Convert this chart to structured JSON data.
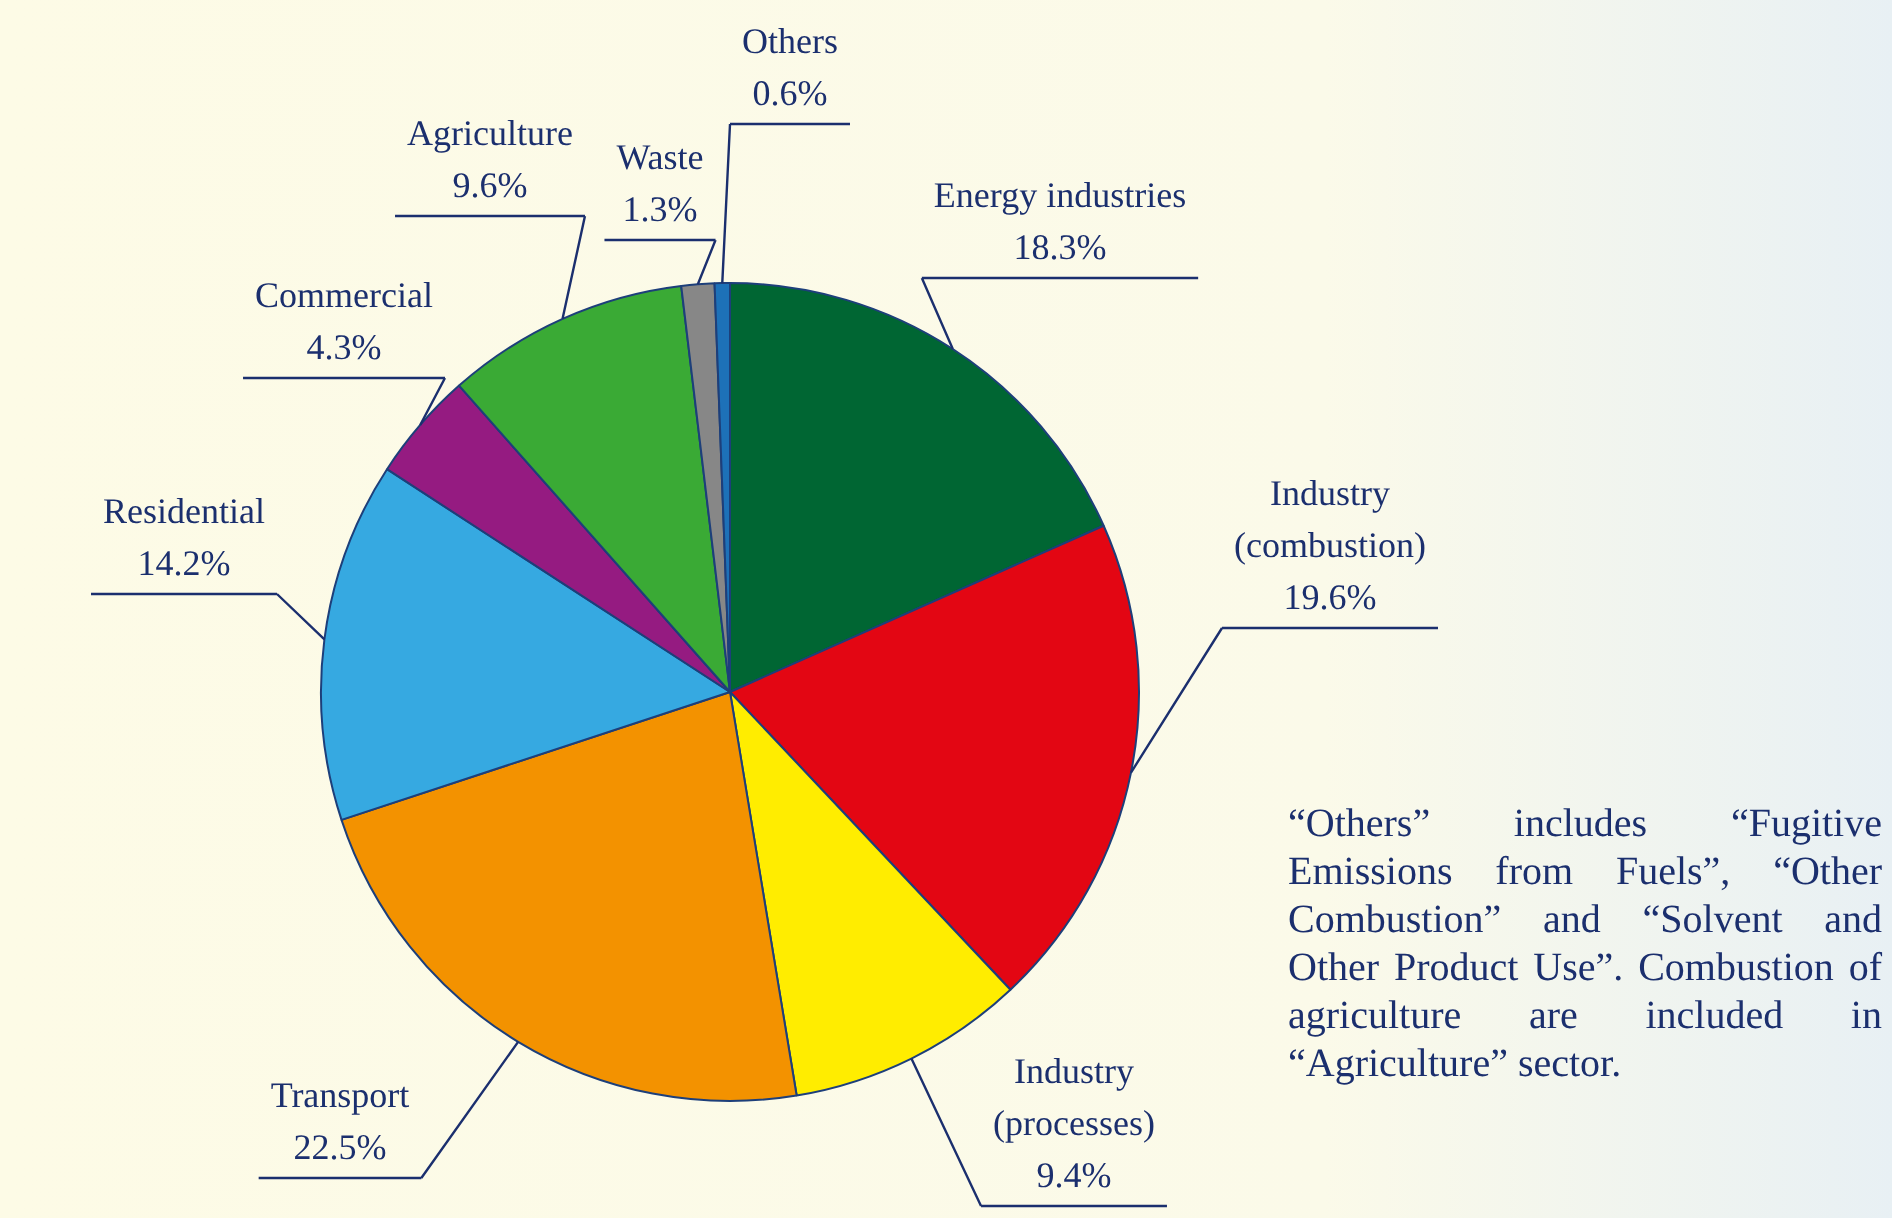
{
  "chart_data": {
    "type": "pie",
    "categories": [
      "Energy industries",
      "Industry (combustion)",
      "Industry (processes)",
      "Transport",
      "Residential",
      "Commercial",
      "Agriculture",
      "Waste",
      "Others"
    ],
    "values": [
      18.3,
      19.6,
      9.4,
      22.5,
      14.2,
      4.3,
      9.6,
      1.3,
      0.6
    ],
    "colors": [
      "#006633",
      "#e30613",
      "#ffed00",
      "#f39200",
      "#36a9e1",
      "#951b81",
      "#3aaa35",
      "#878787",
      "#1d71b8"
    ],
    "value_labels": [
      "18.3%",
      "19.6%",
      "9.4%",
      "22.5%",
      "14.2%",
      "4.3%",
      "9.6%",
      "1.3%",
      "0.6%"
    ],
    "annotations": [
      "“Others” includes “Fugitive Emissions from Fuels”, “Other Combustion” and “Solvent and Other Product Use”. Combustion of agriculture are included in “Agriculture” sector."
    ]
  }
}
